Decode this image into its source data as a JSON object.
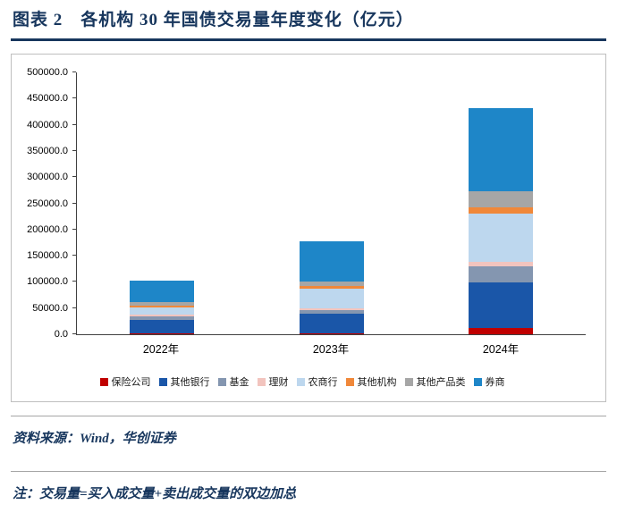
{
  "title": "图表 2　各机构 30 年国债交易量年度变化（亿元）",
  "source_note": "资料来源：Wind，华创证券",
  "footnote": "注：交易量=买入成交量+卖出成交量的双边加总",
  "colors": {
    "title_navy": "#17365d",
    "separator_gray": "#a6a6a6",
    "chart_border": "#bfbfbf",
    "axis_line": "#404040"
  },
  "chart_data": {
    "type": "bar",
    "stacked": true,
    "title": "各机构30年国债交易量年度变化（亿元）",
    "categories": [
      "2022年",
      "2023年",
      "2024年"
    ],
    "series": [
      {
        "name": "保险公司",
        "color": "#c00000",
        "values": [
          1500,
          2500,
          12000
        ]
      },
      {
        "name": "其他银行",
        "color": "#1a56a8",
        "values": [
          26500,
          36000,
          87000
        ]
      },
      {
        "name": "基金",
        "color": "#8496b0",
        "values": [
          6000,
          8000,
          31000
        ]
      },
      {
        "name": "理财",
        "color": "#f2c4be",
        "values": [
          4000,
          3500,
          8000
        ]
      },
      {
        "name": "农商行",
        "color": "#bdd7ee",
        "values": [
          13000,
          37000,
          92000
        ]
      },
      {
        "name": "其他机构",
        "color": "#f0883a",
        "values": [
          4000,
          5000,
          12000
        ]
      },
      {
        "name": "其他产品类",
        "color": "#a6a6a6",
        "values": [
          7000,
          8000,
          31000
        ]
      },
      {
        "name": "券商",
        "color": "#1e86c8",
        "values": [
          41000,
          77000,
          159000
        ]
      }
    ],
    "totals": [
      103000,
      177000,
      432000
    ],
    "ylim": [
      0,
      500000
    ],
    "ytick_step": 50000,
    "ytick_decimals": 1,
    "legend_position": "bottom",
    "grid": false
  }
}
